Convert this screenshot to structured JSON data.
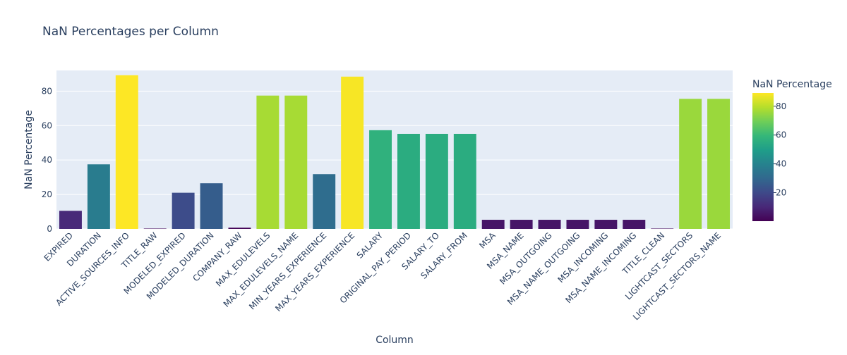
{
  "chart_data": {
    "type": "bar",
    "title": "NaN Percentages per Column",
    "xlabel": "Column",
    "ylabel": "NaN Percentage",
    "ylim": [
      0,
      92
    ],
    "yticks": [
      0,
      20,
      40,
      60,
      80
    ],
    "grid": true,
    "categories": [
      "EXPIRED",
      "DURATION",
      "ACTIVE_SOURCES_INFO",
      "TITLE_RAW",
      "MODELED_EXPIRED",
      "MODELED_DURATION",
      "COMPANY_RAW",
      "MAX_EDULEVELS",
      "MAX_EDULEVELS_NAME",
      "MIN_YEARS_EXPERIENCE",
      "MAX_YEARS_EXPERIENCE",
      "SALARY",
      "ORIGINAL_PAY_PERIOD",
      "SALARY_TO",
      "SALARY_FROM",
      "MSA",
      "MSA_NAME",
      "MSA_OUTGOING",
      "MSA_NAME_OUTGOING",
      "MSA_INCOMING",
      "MSA_NAME_INCOMING",
      "TITLE_CLEAN",
      "LIGHTCAST_SECTORS",
      "LIGHTCAST_SECTORS_NAME"
    ],
    "values": [
      10.5,
      37.5,
      89.2,
      0.2,
      21.0,
      26.5,
      0.7,
      77.4,
      77.4,
      31.8,
      88.4,
      57.3,
      55.2,
      55.2,
      55.2,
      5.3,
      5.3,
      5.3,
      5.3,
      5.3,
      5.3,
      0.2,
      75.5,
      75.5
    ],
    "colorbar": {
      "title": "NaN Percentage",
      "colorscale": "Viridis",
      "range": [
        0.2,
        89.2
      ],
      "ticks": [
        20,
        40,
        60,
        80
      ]
    },
    "colors": {
      "plot_bg": "#e5ecf6",
      "grid": "#ffffff",
      "text": "#2a3f5f"
    }
  }
}
